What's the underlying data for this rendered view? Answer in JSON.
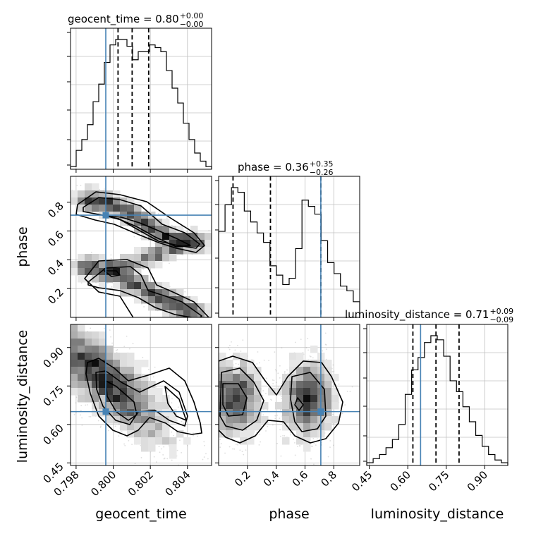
{
  "chart_data": {
    "type": "corner",
    "parameters": [
      "geocent_time",
      "phase",
      "luminosity_distance"
    ],
    "truths": {
      "geocent_time": 0.7996,
      "phase": 0.71,
      "luminosity_distance": 0.65
    },
    "colors": {
      "truth": "#4682b4",
      "hist": "#000000",
      "grid": "#c0c0c0",
      "scatter": "#a0a0a0"
    },
    "titles": [
      {
        "param": "geocent_time",
        "prefix": "geocent_time = 0.80",
        "plus": "+0.00",
        "minus": "−0.00"
      },
      {
        "param": "phase",
        "prefix": "phase = 0.36",
        "plus": "+0.35",
        "minus": "−0.26"
      },
      {
        "param": "luminosity_distance",
        "prefix": "luminosity_distance = 0.71",
        "plus": "+0.09",
        "minus": "−0.09"
      }
    ],
    "axes": {
      "geocent_time": {
        "label": "geocent_time",
        "range": [
          0.7977,
          0.8053
        ],
        "ticks": [
          0.798,
          0.8,
          0.802,
          0.804
        ],
        "tick_labels": [
          "0.798",
          "0.800",
          "0.802",
          "0.804"
        ]
      },
      "phase": {
        "label": "phase",
        "range": [
          0.0,
          0.98
        ],
        "ticks": [
          0.2,
          0.4,
          0.6,
          0.8
        ],
        "tick_labels": [
          "0.2",
          "0.4",
          "0.6",
          "0.8"
        ]
      },
      "luminosity_distance": {
        "label": "luminosity_distance",
        "range": [
          0.44,
          0.99
        ],
        "ticks": [
          0.45,
          0.6,
          0.75,
          0.9
        ],
        "tick_labels": [
          "0.45",
          "0.60",
          "0.75",
          "0.90"
        ]
      }
    },
    "quantiles": {
      "geocent_time": [
        0.80026,
        0.80102,
        0.80191
      ],
      "phase": [
        0.1,
        0.36,
        0.71
      ],
      "luminosity_distance": [
        0.62,
        0.71,
        0.8
      ]
    },
    "histograms": {
      "geocent_time": {
        "range": [
          0.7977,
          0.8053
        ],
        "counts": [
          0.02,
          0.14,
          0.22,
          0.33,
          0.5,
          0.63,
          0.79,
          0.92,
          0.96,
          0.96,
          0.91,
          0.81,
          0.87,
          0.87,
          0.92,
          0.9,
          0.87,
          0.73,
          0.6,
          0.49,
          0.34,
          0.22,
          0.12,
          0.06,
          0.02
        ]
      },
      "phase": {
        "range": [
          0.0,
          0.98
        ],
        "counts": [
          0.55,
          0.72,
          0.83,
          0.8,
          0.68,
          0.61,
          0.54,
          0.48,
          0.33,
          0.27,
          0.21,
          0.25,
          0.44,
          0.75,
          0.71,
          0.66,
          0.49,
          0.35,
          0.28,
          0.2,
          0.17,
          0.1
        ]
      },
      "luminosity_distance": {
        "range": [
          0.44,
          0.99
        ],
        "counts": [
          0.02,
          0.05,
          0.08,
          0.13,
          0.19,
          0.3,
          0.52,
          0.7,
          0.79,
          0.9,
          0.95,
          0.92,
          0.8,
          0.62,
          0.54,
          0.43,
          0.32,
          0.22,
          0.14,
          0.08,
          0.04,
          0.02
        ]
      }
    },
    "xlabels": [
      "geocent_time",
      "phase",
      "luminosity_distance"
    ],
    "ylabels": [
      "phase",
      "luminosity_distance"
    ],
    "grid": true
  }
}
